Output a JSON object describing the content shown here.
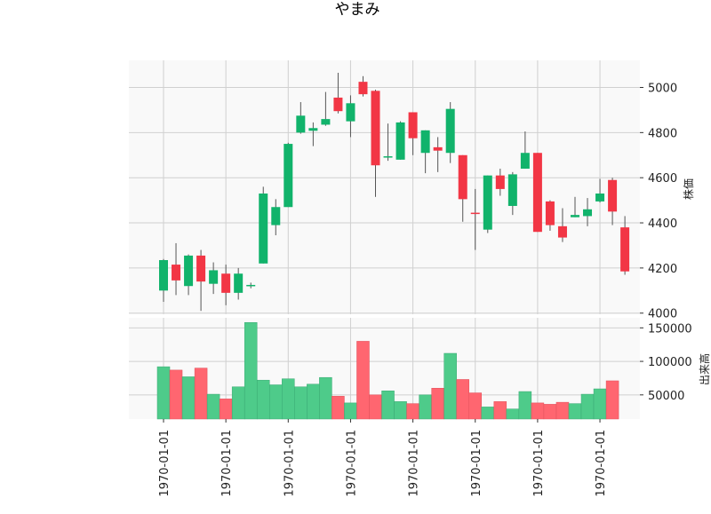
{
  "chart_data": {
    "type": "candlestick",
    "title": "やまみ",
    "ylabel_price": "株価",
    "ylabel_volume": "出来高",
    "x_tick_labels": [
      "1970-01-01",
      "1970-01-01",
      "1970-01-01",
      "1970-01-01",
      "1970-01-01",
      "1970-01-01",
      "1970-01-01",
      "1970-01-01"
    ],
    "price_ticks": [
      4000,
      4200,
      4400,
      4600,
      4800,
      5000
    ],
    "price_ylim": [
      3995,
      5120
    ],
    "volume_ticks": [
      50000,
      100000,
      150000
    ],
    "volume_ylim": [
      14000,
      165000
    ],
    "grid": true,
    "colors": {
      "up": "#11b36b",
      "down": "#f23645",
      "up_volume": "#4ecb8a",
      "down_volume": "#ff6670",
      "wick": "#555555"
    },
    "candles": [
      {
        "open": 4100,
        "close": 4235,
        "high": 4240,
        "low": 4050,
        "volume": 92000
      },
      {
        "open": 4215,
        "close": 4145,
        "high": 4310,
        "low": 4080,
        "volume": 87000
      },
      {
        "open": 4120,
        "close": 4255,
        "high": 4260,
        "low": 4080,
        "volume": 77000
      },
      {
        "open": 4255,
        "close": 4140,
        "high": 4280,
        "low": 4010,
        "volume": 90000
      },
      {
        "open": 4130,
        "close": 4190,
        "high": 4225,
        "low": 4085,
        "volume": 51000
      },
      {
        "open": 4175,
        "close": 4090,
        "high": 4215,
        "low": 4035,
        "volume": 44000
      },
      {
        "open": 4090,
        "close": 4175,
        "high": 4200,
        "low": 4060,
        "volume": 62000
      },
      {
        "open": 4120,
        "close": 4125,
        "high": 4135,
        "low": 4110,
        "volume": 158000
      },
      {
        "open": 4220,
        "close": 4530,
        "high": 4560,
        "low": 4220,
        "volume": 72000
      },
      {
        "open": 4390,
        "close": 4470,
        "high": 4505,
        "low": 4345,
        "volume": 65000
      },
      {
        "open": 4470,
        "close": 4750,
        "high": 4755,
        "low": 4470,
        "volume": 74000
      },
      {
        "open": 4800,
        "close": 4875,
        "high": 4935,
        "low": 4795,
        "volume": 62000
      },
      {
        "open": 4808,
        "close": 4820,
        "high": 4845,
        "low": 4740,
        "volume": 66000
      },
      {
        "open": 4835,
        "close": 4860,
        "high": 4980,
        "low": 4830,
        "volume": 76000
      },
      {
        "open": 4955,
        "close": 4895,
        "high": 5065,
        "low": 4885,
        "volume": 48000
      },
      {
        "open": 4850,
        "close": 4930,
        "high": 4965,
        "low": 4780,
        "volume": 38000
      },
      {
        "open": 5025,
        "close": 4970,
        "high": 5050,
        "low": 4960,
        "volume": 130000
      },
      {
        "open": 4985,
        "close": 4655,
        "high": 4990,
        "low": 4515,
        "volume": 50000
      },
      {
        "open": 4695,
        "close": 4695,
        "high": 4840,
        "low": 4675,
        "volume": 56000
      },
      {
        "open": 4680,
        "close": 4845,
        "high": 4850,
        "low": 4680,
        "volume": 40000
      },
      {
        "open": 4890,
        "close": 4775,
        "high": 4890,
        "low": 4700,
        "volume": 37000
      },
      {
        "open": 4710,
        "close": 4810,
        "high": 4810,
        "low": 4620,
        "volume": 50000
      },
      {
        "open": 4735,
        "close": 4720,
        "high": 4780,
        "low": 4625,
        "volume": 60000
      },
      {
        "open": 4710,
        "close": 4905,
        "high": 4935,
        "low": 4665,
        "volume": 112000
      },
      {
        "open": 4700,
        "close": 4505,
        "high": 4700,
        "low": 4405,
        "volume": 73000
      },
      {
        "open": 4445,
        "close": 4440,
        "high": 4550,
        "low": 4280,
        "volume": 53000
      },
      {
        "open": 4370,
        "close": 4610,
        "high": 4610,
        "low": 4355,
        "volume": 32000
      },
      {
        "open": 4610,
        "close": 4550,
        "high": 4640,
        "low": 4520,
        "volume": 40000
      },
      {
        "open": 4475,
        "close": 4615,
        "high": 4625,
        "low": 4435,
        "volume": 29000
      },
      {
        "open": 4640,
        "close": 4710,
        "high": 4805,
        "low": 4640,
        "volume": 55000
      },
      {
        "open": 4710,
        "close": 4360,
        "high": 4710,
        "low": 4360,
        "volume": 38000
      },
      {
        "open": 4495,
        "close": 4390,
        "high": 4500,
        "low": 4365,
        "volume": 36000
      },
      {
        "open": 4385,
        "close": 4335,
        "high": 4465,
        "low": 4315,
        "volume": 39000
      },
      {
        "open": 4425,
        "close": 4435,
        "high": 4515,
        "low": 4425,
        "volume": 37000
      },
      {
        "open": 4430,
        "close": 4460,
        "high": 4510,
        "low": 4385,
        "volume": 51000
      },
      {
        "open": 4495,
        "close": 4530,
        "high": 4595,
        "low": 4490,
        "volume": 59000
      },
      {
        "open": 4590,
        "close": 4450,
        "high": 4600,
        "low": 4390,
        "volume": 71000
      },
      {
        "open": 4380,
        "close": 4185,
        "high": 4430,
        "low": 4170,
        "volume": 0
      }
    ]
  }
}
